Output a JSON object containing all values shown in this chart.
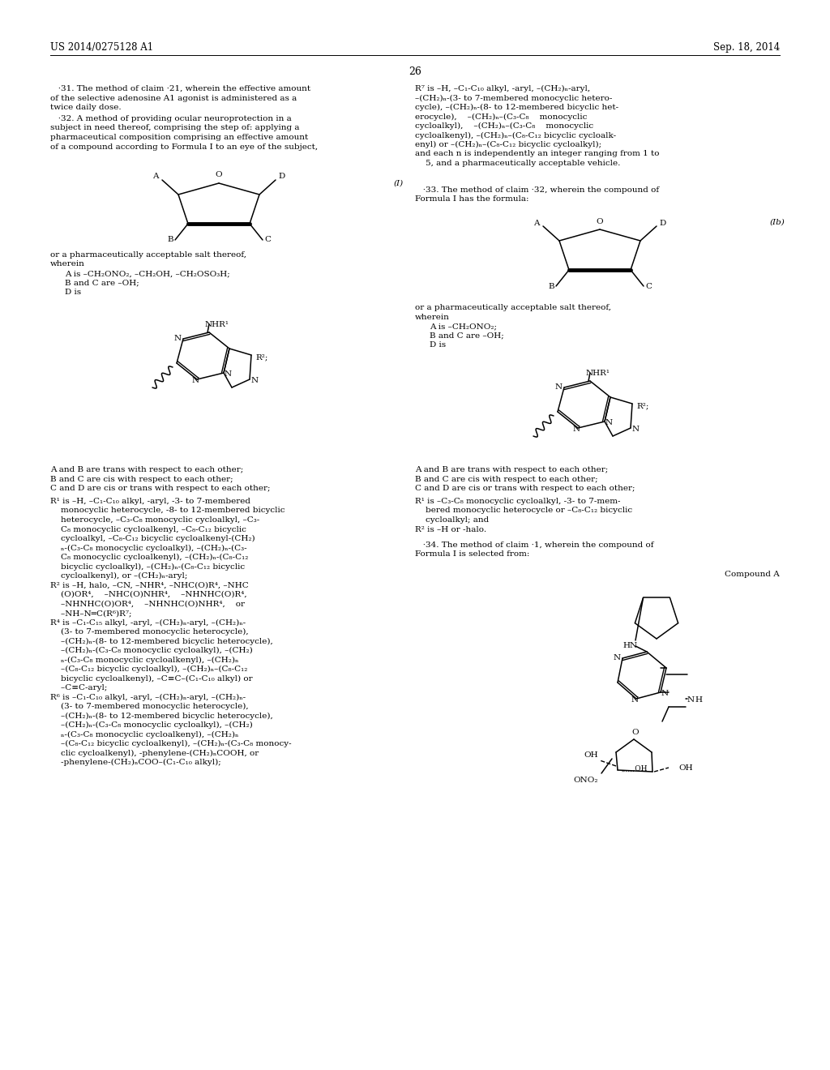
{
  "page_number": "26",
  "patent_number": "US 2014/0275128 A1",
  "patent_date": "Sep. 18, 2014",
  "background_color": "#ffffff",
  "text_color": "#000000",
  "font_size_body": 7.5,
  "font_size_header": 8.5,
  "font_size_claim_num": 7.5
}
